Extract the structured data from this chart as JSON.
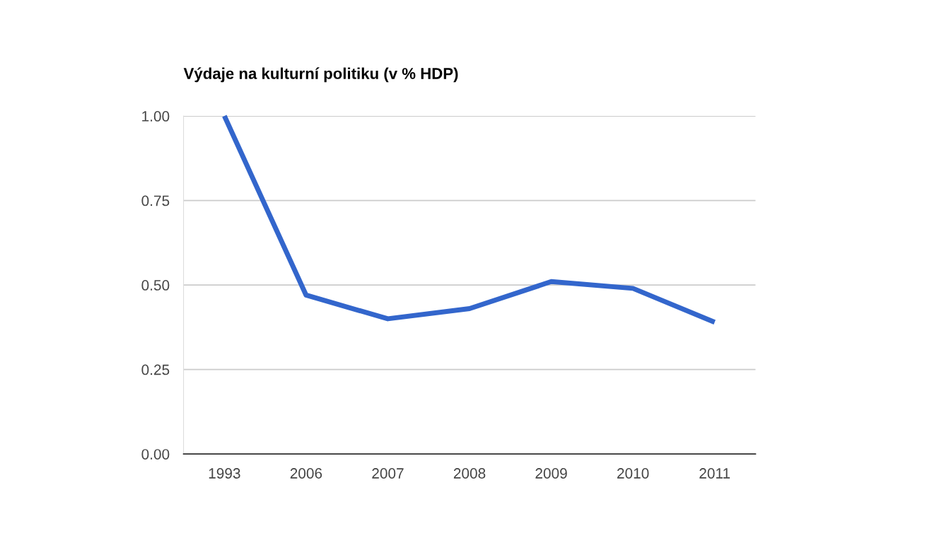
{
  "chart_data": {
    "type": "line",
    "title": "Výdaje na kulturní politiku (v % HDP)",
    "categories": [
      "1993",
      "2006",
      "2007",
      "2008",
      "2009",
      "2010",
      "2011"
    ],
    "series": [
      {
        "color": "#3366cc",
        "values": [
          1.0,
          0.47,
          0.4,
          0.43,
          0.51,
          0.49,
          0.39
        ]
      }
    ],
    "ylim": [
      0,
      1
    ],
    "yticks": [
      {
        "value": 0,
        "label": "0.00"
      },
      {
        "value": 0.25,
        "label": "0.25"
      },
      {
        "value": 0.5,
        "label": "0.50"
      },
      {
        "value": 0.75,
        "label": "0.75"
      },
      {
        "value": 1,
        "label": "1.00"
      }
    ],
    "grid": "y"
  }
}
